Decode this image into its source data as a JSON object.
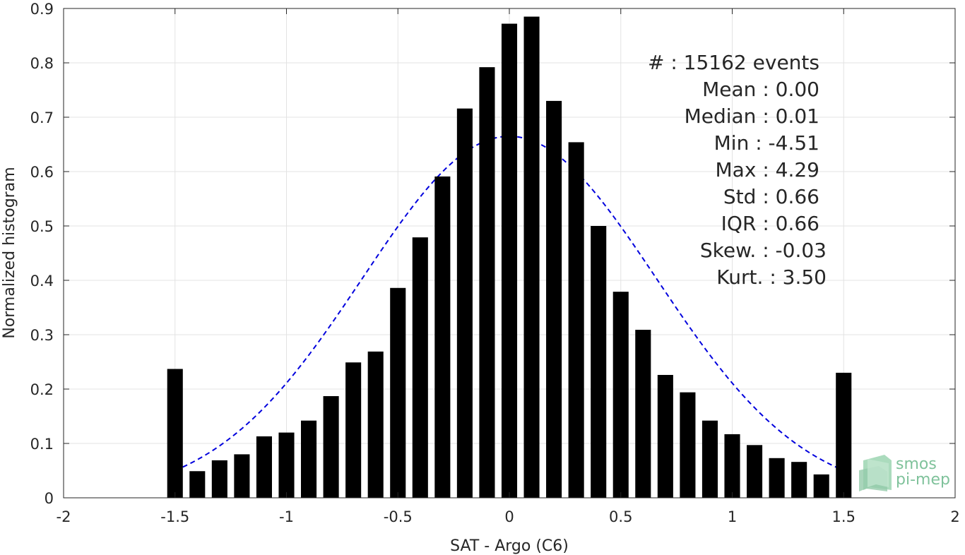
{
  "chart_data": {
    "type": "bar",
    "xlabel": "SAT - Argo (C6)",
    "ylabel": "Normalized histogram",
    "xlim": [
      -2,
      2
    ],
    "ylim": [
      0,
      0.9
    ],
    "xticks": [
      -2,
      -1.5,
      -1,
      -0.5,
      0,
      0.5,
      1,
      1.5,
      2
    ],
    "xtick_labels": [
      "-2",
      "-1.5",
      "-1",
      "-0.5",
      "0",
      "0.5",
      "1",
      "1.5",
      "2"
    ],
    "yticks": [
      0,
      0.1,
      0.2,
      0.3,
      0.4,
      0.5,
      0.6,
      0.7,
      0.8,
      0.9
    ],
    "ytick_labels": [
      "0",
      "0.1",
      "0.2",
      "0.3",
      "0.4",
      "0.5",
      "0.6",
      "0.7",
      "0.8",
      "0.9"
    ],
    "grid": true,
    "bar_color": "#000000",
    "bins": [
      -1.5,
      -1.4,
      -1.3,
      -1.2,
      -1.1,
      -1.0,
      -0.9,
      -0.8,
      -0.7,
      -0.6,
      -0.5,
      -0.4,
      -0.3,
      -0.2,
      -0.1,
      0.0,
      0.1,
      0.2,
      0.3,
      0.4,
      0.5,
      0.6,
      0.7,
      0.8,
      0.9,
      1.0,
      1.1,
      1.2,
      1.3,
      1.4,
      1.5
    ],
    "values": [
      0.237,
      0.049,
      0.069,
      0.08,
      0.113,
      0.12,
      0.142,
      0.187,
      0.249,
      0.269,
      0.386,
      0.479,
      0.591,
      0.716,
      0.792,
      0.872,
      0.885,
      0.73,
      0.654,
      0.5,
      0.379,
      0.309,
      0.226,
      0.194,
      0.142,
      0.117,
      0.097,
      0.073,
      0.066,
      0.043,
      0.23
    ],
    "fit": {
      "type": "gaussian",
      "mean": 0.0,
      "std": 0.66,
      "x_range": [
        -1.5,
        1.5
      ],
      "color": "#0000dd",
      "style": "dashed"
    },
    "stats": [
      {
        "label": "#  ",
        "value": ": 15162 events"
      },
      {
        "label": "Mean ",
        "value": ": 0.00"
      },
      {
        "label": "Median ",
        "value": ": 0.01"
      },
      {
        "label": "Min ",
        "value": ": -4.51"
      },
      {
        "label": "Max ",
        "value": ": 4.29"
      },
      {
        "label": "Std ",
        "value": ": 0.66"
      },
      {
        "label": "IQR ",
        "value": ": 0.66"
      },
      {
        "label": "Skew. ",
        "value": ": -0.03"
      },
      {
        "label": "Kurt. ",
        "value": ": 3.50"
      }
    ]
  },
  "logo": {
    "line1": "smos",
    "line2": "pi-mep",
    "color": "#7fc29b"
  }
}
